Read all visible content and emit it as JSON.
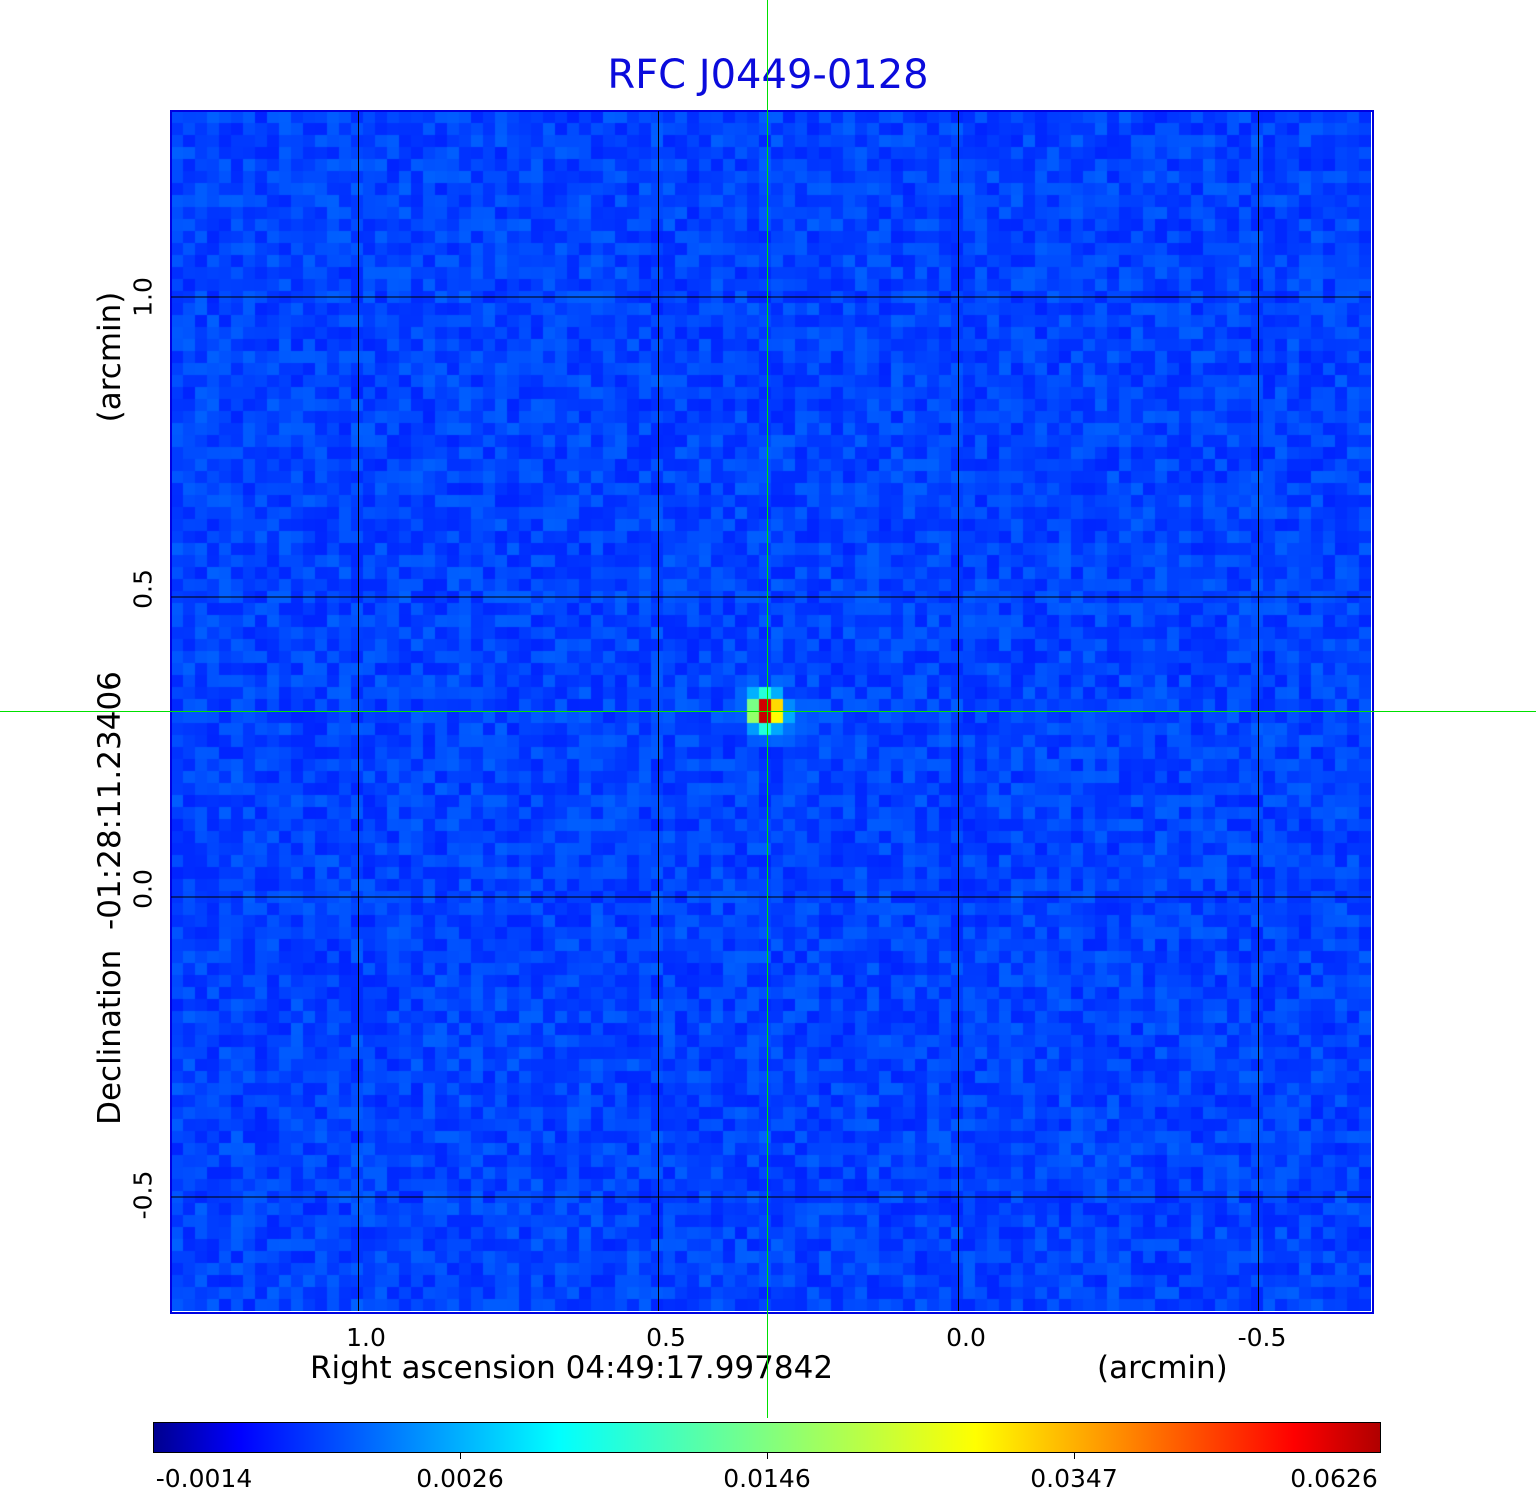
{
  "chart_data": {
    "type": "heatmap",
    "title": "RFC J0449-0128",
    "xlabel": "Right ascension  04:49:17.997842",
    "xunit": "(arcmin)",
    "ylabel": "Declination  -01:28:11.23406",
    "yunit": "(arcmin)",
    "xlim": [
      1.3125,
      -0.6875
    ],
    "ylim": [
      -0.69,
      1.31
    ],
    "xticks": [
      "1.0",
      "0.5",
      "0.0",
      "-0.5"
    ],
    "xtick_values": [
      1.0,
      0.5,
      0.0,
      -0.5
    ],
    "yticks": [
      "1.0",
      "0.5",
      "0.0",
      "-0.5"
    ],
    "ytick_values": [
      1.0,
      0.5,
      0.0,
      -0.5
    ],
    "grid": true,
    "colormap": "jet",
    "colorbar_ticks": [
      "-0.0014",
      "0.0026",
      "0.0146",
      "0.0347",
      "0.0626"
    ],
    "value_range": [
      -0.0014,
      0.0626
    ],
    "source_peak": {
      "ra_offset": 0.32,
      "dec_offset": 0.31,
      "value": 0.0626
    },
    "crosshair": {
      "ra_offset": 0.32,
      "dec_offset": 0.31,
      "color": "#00e000"
    },
    "background_color": "#0a4cf5"
  }
}
